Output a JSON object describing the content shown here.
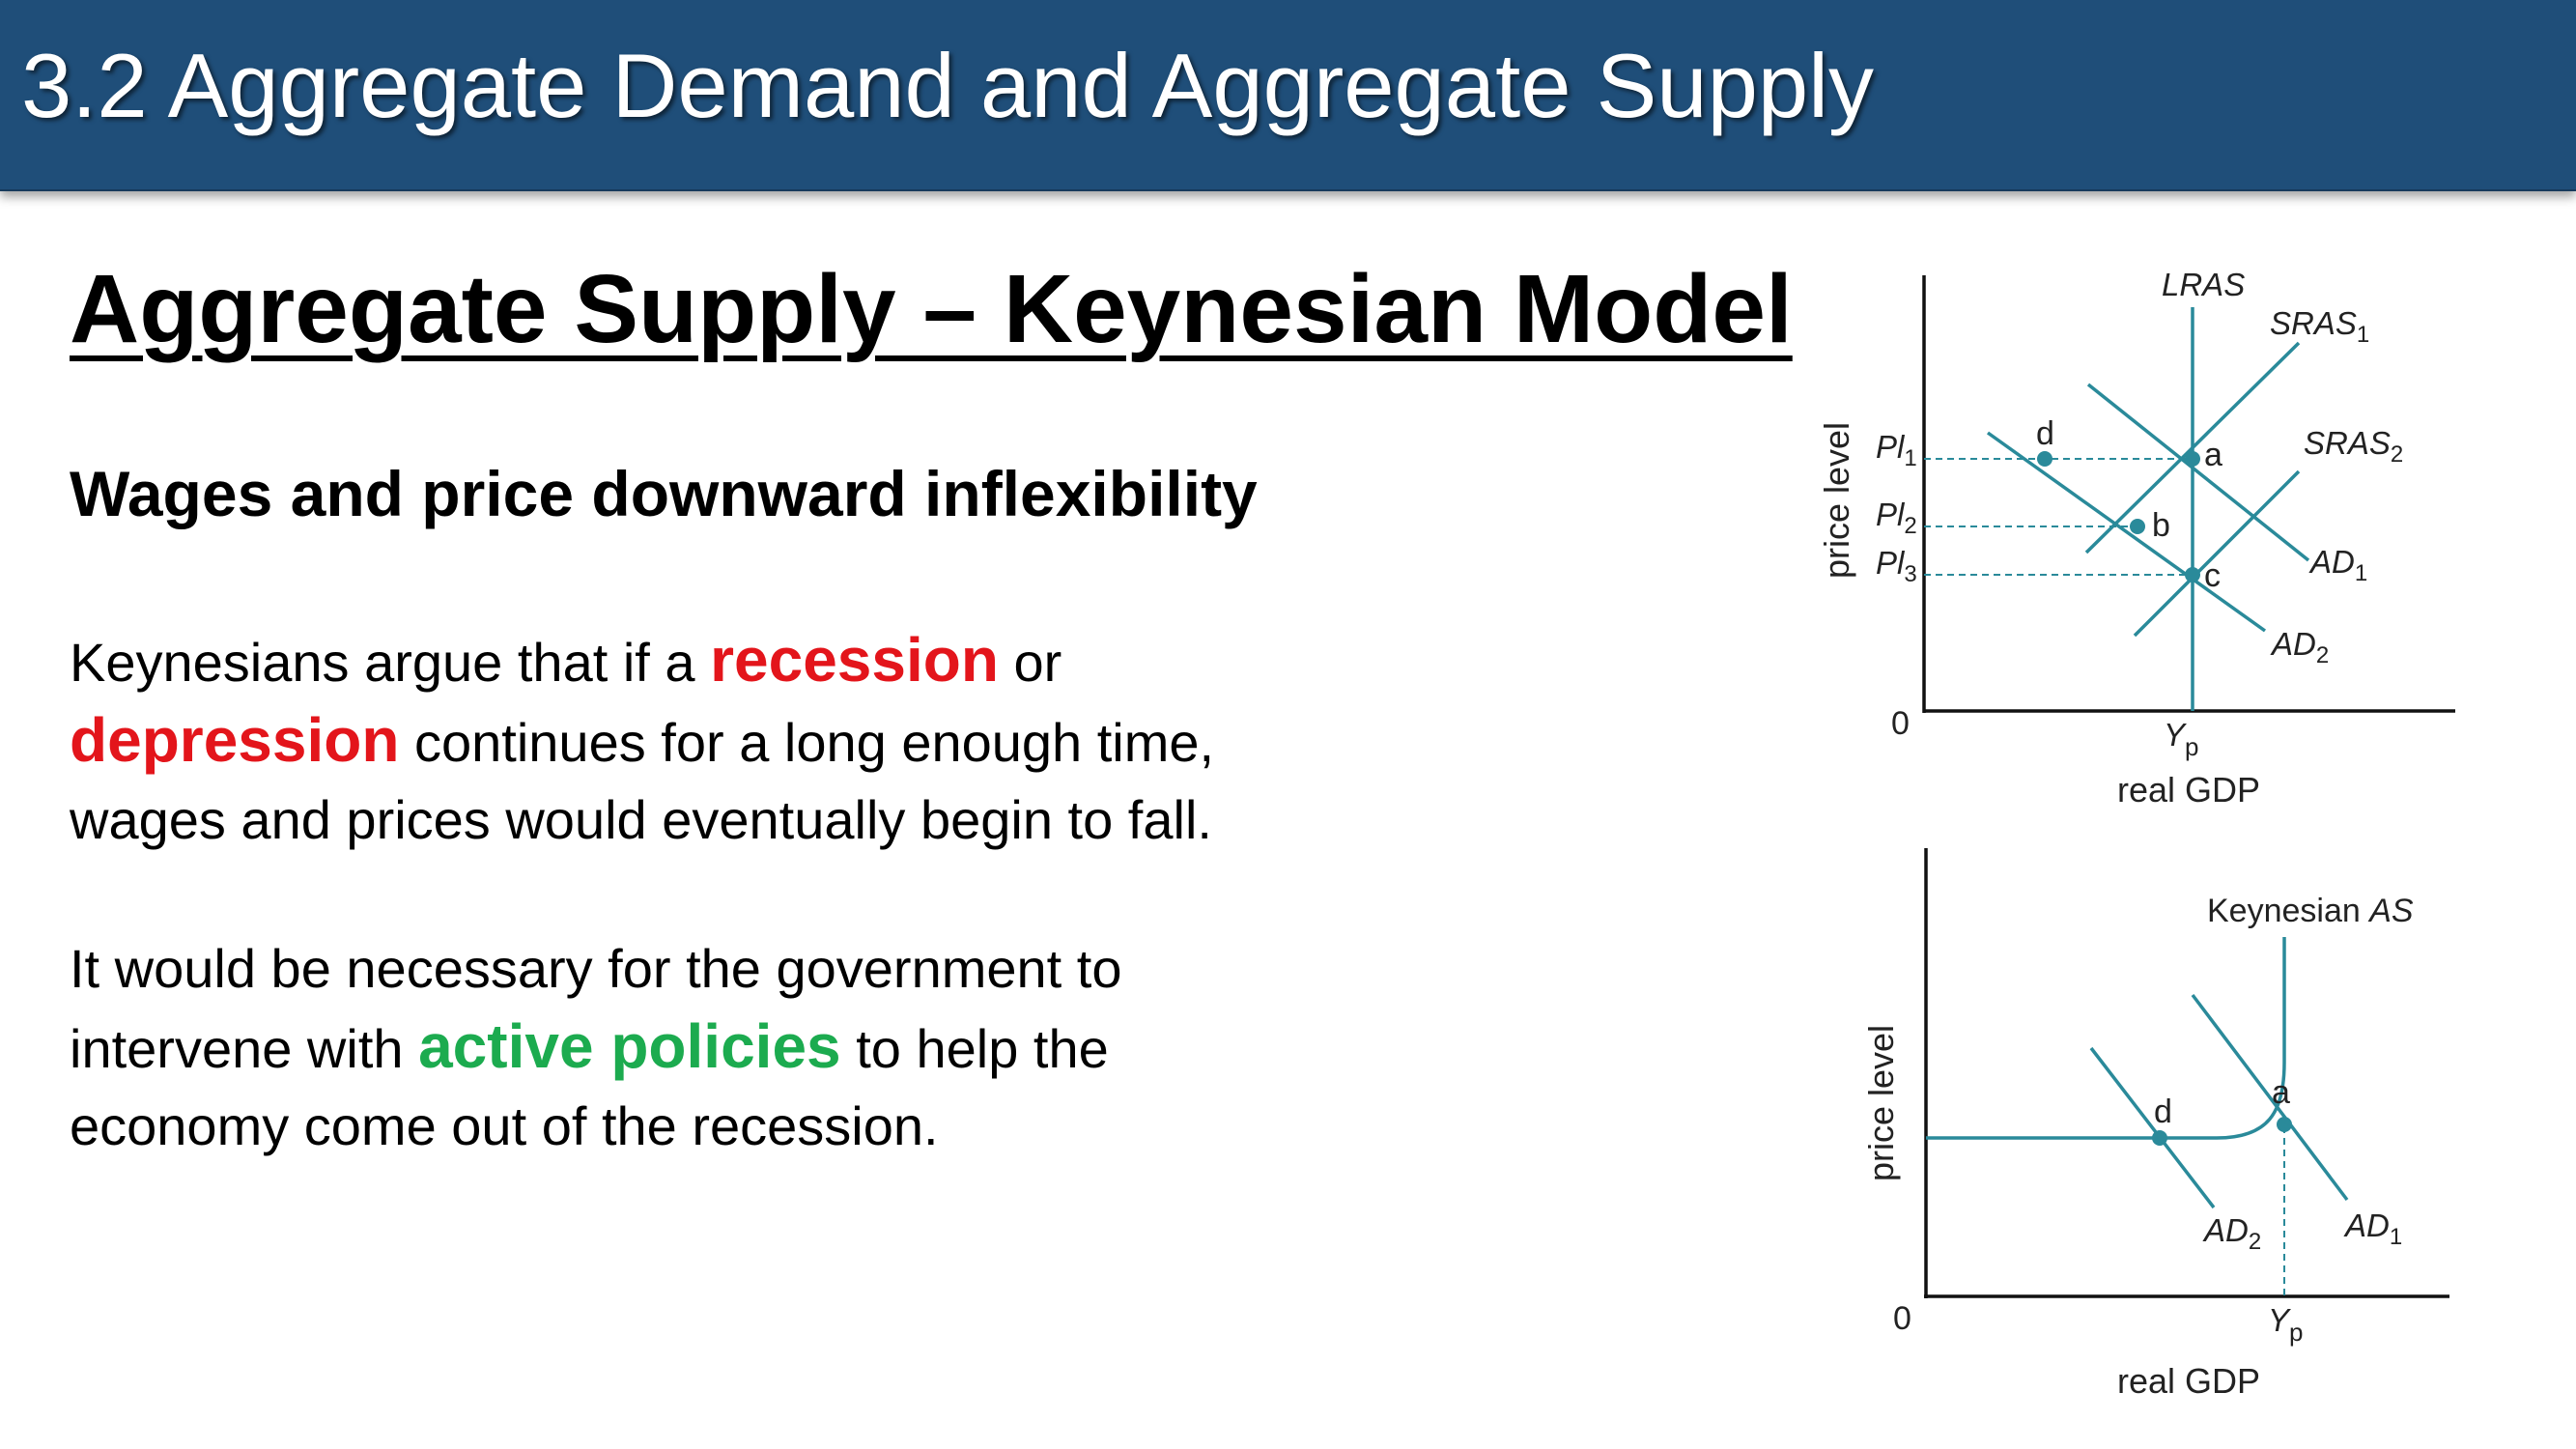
{
  "header": {
    "title": "3.2 Aggregate Demand and Aggregate Supply"
  },
  "content": {
    "heading": "Aggregate Supply – Keynesian Model",
    "subheading": "Wages and price downward inflexibility",
    "paragraph1": {
      "line1_a": "Keynesians argue that if a ",
      "term_recession": "recession",
      "line1_b": " or",
      "term_depression": "depression",
      "line2": " continues for a long enough time,",
      "line3": "wages and prices would eventually begin to fall."
    },
    "paragraph2": {
      "line1": "It would be necessary for the government to",
      "line2_a": "intervene with ",
      "term_active": "active policies",
      "line2_b": " to help the",
      "line3": "economy come out of the recession."
    },
    "colors": {
      "title_bar": "#1f4e79",
      "highlight_red": "#e3151b",
      "highlight_green": "#1cab4f",
      "curve_teal": "#2a8a9a"
    }
  },
  "graph1": {
    "y_axis_label": "price level",
    "x_axis_label": "real GDP",
    "origin": "0",
    "x_tick": {
      "main": "Y",
      "sub": "p"
    },
    "curves": {
      "lras": "LRAS",
      "sras1": {
        "main": "SRAS",
        "sub": "1"
      },
      "sras2": {
        "main": "SRAS",
        "sub": "2"
      },
      "ad1": {
        "main": "AD",
        "sub": "1"
      },
      "ad2": {
        "main": "AD",
        "sub": "2"
      }
    },
    "price_levels": [
      {
        "main": "Pl",
        "sub": "1"
      },
      {
        "main": "Pl",
        "sub": "2"
      },
      {
        "main": "Pl",
        "sub": "3"
      }
    ],
    "points": [
      "a",
      "b",
      "c",
      "d"
    ]
  },
  "graph2": {
    "y_axis_label": "price level",
    "x_axis_label": "real GDP",
    "origin": "0",
    "x_tick": {
      "main": "Y",
      "sub": "p"
    },
    "curves": {
      "keynesian_as_a": "Keynesian ",
      "keynesian_as_b": "AS",
      "ad1": {
        "main": "AD",
        "sub": "1"
      },
      "ad2": {
        "main": "AD",
        "sub": "2"
      }
    },
    "points": [
      "a",
      "d"
    ]
  }
}
